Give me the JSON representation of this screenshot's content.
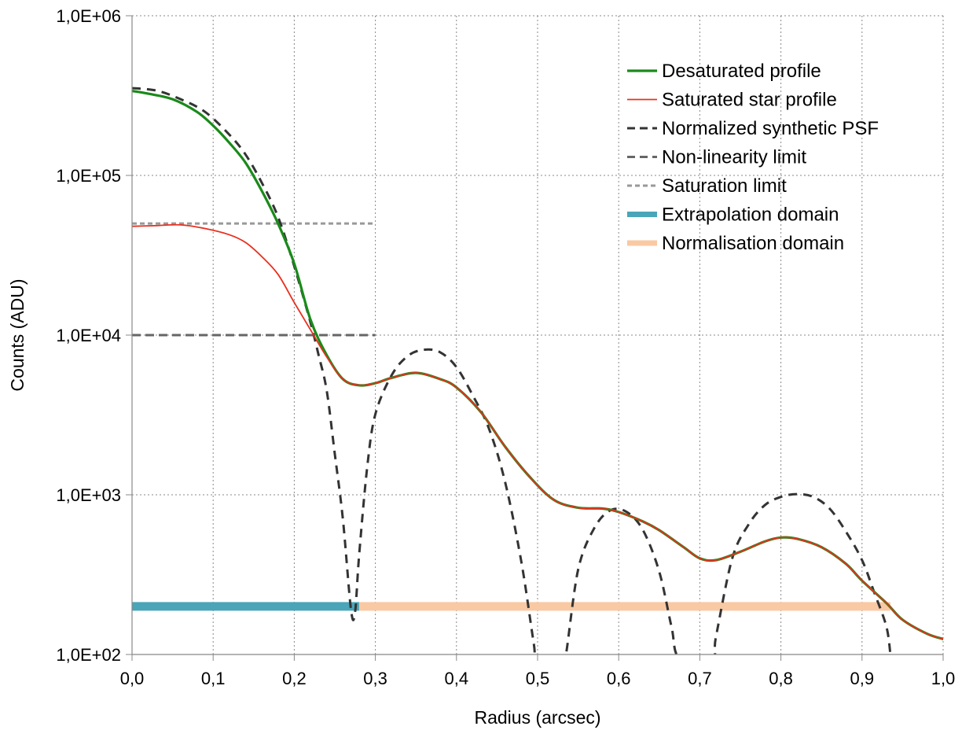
{
  "chart_data": {
    "type": "line",
    "title": "",
    "xlabel": "Radius (arcsec)",
    "ylabel": "Counts (ADU)",
    "xlim": [
      0,
      1.0
    ],
    "ylim": [
      100,
      1000000
    ],
    "yscale": "log",
    "grid": true,
    "legend_position": "top-right",
    "x_ticks": [
      {
        "value": 0.0,
        "label": "0,0"
      },
      {
        "value": 0.1,
        "label": "0,1"
      },
      {
        "value": 0.2,
        "label": "0,2"
      },
      {
        "value": 0.3,
        "label": "0,3"
      },
      {
        "value": 0.4,
        "label": "0,4"
      },
      {
        "value": 0.5,
        "label": "0,5"
      },
      {
        "value": 0.6,
        "label": "0,6"
      },
      {
        "value": 0.7,
        "label": "0,7"
      },
      {
        "value": 0.8,
        "label": "0,8"
      },
      {
        "value": 0.9,
        "label": "0,9"
      },
      {
        "value": 1.0,
        "label": "1,0"
      }
    ],
    "y_ticks": [
      {
        "value": 100,
        "label": "1,0E+02"
      },
      {
        "value": 1000,
        "label": "1,0E+03"
      },
      {
        "value": 10000,
        "label": "1,0E+04"
      },
      {
        "value": 100000,
        "label": "1,0E+05"
      },
      {
        "value": 1000000,
        "label": "1,0E+06"
      }
    ],
    "series": [
      {
        "name": "Desaturated profile",
        "color": "#1a8a1a",
        "style": "solid-thick",
        "points": [
          [
            0,
            338000
          ],
          [
            0.02,
            325000
          ],
          [
            0.05,
            300000
          ],
          [
            0.08,
            250000
          ],
          [
            0.1,
            205000
          ],
          [
            0.12,
            160000
          ],
          [
            0.14,
            120000
          ],
          [
            0.16,
            80000
          ],
          [
            0.18,
            50000
          ],
          [
            0.2,
            28000
          ],
          [
            0.22,
            12500
          ],
          [
            0.24,
            7500
          ],
          [
            0.26,
            5300
          ],
          [
            0.28,
            4850
          ],
          [
            0.3,
            5000
          ],
          [
            0.32,
            5400
          ],
          [
            0.35,
            5800
          ],
          [
            0.38,
            5300
          ],
          [
            0.4,
            4700
          ],
          [
            0.43,
            3300
          ],
          [
            0.46,
            2000
          ],
          [
            0.49,
            1300
          ],
          [
            0.52,
            930
          ],
          [
            0.55,
            830
          ],
          [
            0.58,
            820
          ],
          [
            0.6,
            780
          ],
          [
            0.63,
            680
          ],
          [
            0.65,
            600
          ],
          [
            0.68,
            470
          ],
          [
            0.7,
            400
          ],
          [
            0.72,
            390
          ],
          [
            0.75,
            440
          ],
          [
            0.78,
            510
          ],
          [
            0.8,
            540
          ],
          [
            0.82,
            530
          ],
          [
            0.85,
            470
          ],
          [
            0.88,
            370
          ],
          [
            0.9,
            290
          ],
          [
            0.93,
            210
          ],
          [
            0.95,
            165
          ],
          [
            0.98,
            135
          ],
          [
            1.0,
            125
          ]
        ]
      },
      {
        "name": "Saturated star profile",
        "color": "#e8301e",
        "style": "solid-thin",
        "points": [
          [
            0,
            48000
          ],
          [
            0.03,
            48500
          ],
          [
            0.06,
            49000
          ],
          [
            0.09,
            46500
          ],
          [
            0.12,
            42500
          ],
          [
            0.14,
            38000
          ],
          [
            0.16,
            31000
          ],
          [
            0.18,
            24000
          ],
          [
            0.2,
            16000
          ],
          [
            0.22,
            10800
          ],
          [
            0.24,
            7300
          ],
          [
            0.26,
            5300
          ],
          [
            0.28,
            4850
          ],
          [
            0.3,
            5000
          ],
          [
            0.32,
            5400
          ],
          [
            0.35,
            5800
          ],
          [
            0.38,
            5300
          ],
          [
            0.4,
            4700
          ],
          [
            0.43,
            3300
          ],
          [
            0.46,
            2000
          ],
          [
            0.49,
            1300
          ],
          [
            0.52,
            930
          ],
          [
            0.55,
            830
          ],
          [
            0.58,
            820
          ],
          [
            0.6,
            780
          ],
          [
            0.63,
            680
          ],
          [
            0.65,
            600
          ],
          [
            0.68,
            470
          ],
          [
            0.7,
            400
          ],
          [
            0.72,
            390
          ],
          [
            0.75,
            440
          ],
          [
            0.78,
            510
          ],
          [
            0.8,
            540
          ],
          [
            0.82,
            530
          ],
          [
            0.85,
            470
          ],
          [
            0.88,
            370
          ],
          [
            0.9,
            290
          ],
          [
            0.93,
            210
          ],
          [
            0.95,
            165
          ],
          [
            0.98,
            135
          ],
          [
            1.0,
            125
          ]
        ]
      },
      {
        "name": "Normalized synthetic PSF",
        "color": "#333333",
        "style": "dashed-thick",
        "points": [
          [
            0,
            352000
          ],
          [
            0.03,
            340000
          ],
          [
            0.06,
            300000
          ],
          [
            0.09,
            250000
          ],
          [
            0.12,
            180000
          ],
          [
            0.14,
            135000
          ],
          [
            0.16,
            90000
          ],
          [
            0.18,
            55000
          ],
          [
            0.2,
            27000
          ],
          [
            0.22,
            12000
          ],
          [
            0.23,
            7500
          ],
          [
            0.24,
            4500
          ],
          [
            0.25,
            1800
          ],
          [
            0.26,
            700
          ],
          [
            0.27,
            190
          ],
          [
            0.275,
            185
          ],
          [
            0.28,
            420
          ],
          [
            0.29,
            1500
          ],
          [
            0.3,
            3200
          ],
          [
            0.32,
            5600
          ],
          [
            0.34,
            7400
          ],
          [
            0.36,
            8100
          ],
          [
            0.38,
            7800
          ],
          [
            0.4,
            6300
          ],
          [
            0.42,
            4200
          ],
          [
            0.44,
            2600
          ],
          [
            0.46,
            1200
          ],
          [
            0.48,
            380
          ],
          [
            0.495,
            120
          ],
          [
            0.5,
            90
          ],
          [
            0.53,
            90
          ],
          [
            0.535,
            100
          ],
          [
            0.55,
            340
          ],
          [
            0.57,
            620
          ],
          [
            0.59,
            800
          ],
          [
            0.61,
            780
          ],
          [
            0.63,
            600
          ],
          [
            0.65,
            330
          ],
          [
            0.665,
            150
          ],
          [
            0.675,
            95
          ],
          [
            0.715,
            95
          ],
          [
            0.72,
            130
          ],
          [
            0.74,
            400
          ],
          [
            0.76,
            650
          ],
          [
            0.78,
            860
          ],
          [
            0.8,
            970
          ],
          [
            0.82,
            1010
          ],
          [
            0.84,
            970
          ],
          [
            0.86,
            820
          ],
          [
            0.88,
            590
          ],
          [
            0.9,
            390
          ],
          [
            0.915,
            245
          ],
          [
            0.93,
            150
          ],
          [
            0.935,
            100
          ]
        ]
      },
      {
        "name": "Non-linearity limit",
        "color": "#666666",
        "style": "dashed-medium",
        "points": [
          [
            0,
            10000
          ],
          [
            0.3,
            10000
          ]
        ]
      },
      {
        "name": "Saturation limit",
        "color": "#999999",
        "style": "dashed-short",
        "points": [
          [
            0,
            50000
          ],
          [
            0.3,
            50000
          ]
        ]
      },
      {
        "name": "Extrapolation domain",
        "color": "#4aa5b8",
        "style": "band",
        "points": [
          [
            0,
            200
          ],
          [
            0.28,
            200
          ]
        ]
      },
      {
        "name": "Normalisation domain",
        "color": "#f9c9a3",
        "style": "band",
        "points": [
          [
            0.28,
            200
          ],
          [
            0.935,
            200
          ]
        ]
      }
    ]
  }
}
